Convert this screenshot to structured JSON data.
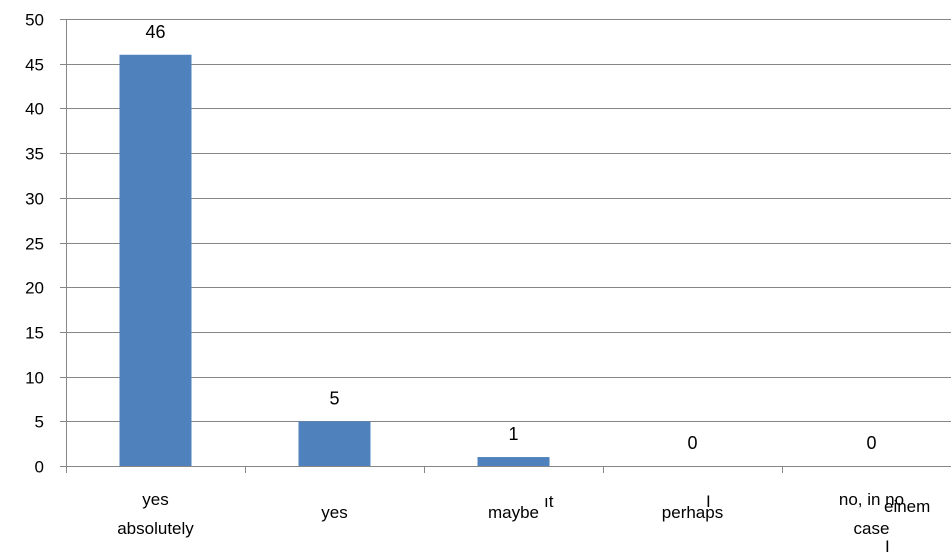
{
  "chart_data": {
    "type": "bar",
    "categories": [
      [
        "yes",
        "absolutely"
      ],
      [
        "yes"
      ],
      [
        "maybe"
      ],
      [
        "perhaps"
      ],
      [
        "no, in no",
        "case"
      ]
    ],
    "values": [
      46,
      5,
      1,
      0,
      0
    ],
    "data_labels": [
      "46",
      "5",
      "1",
      "0",
      "0"
    ],
    "ylim": [
      0,
      50
    ],
    "yticks": [
      0,
      5,
      10,
      15,
      20,
      25,
      30,
      35,
      40,
      45,
      50
    ],
    "title": "",
    "xlabel": "",
    "ylabel": "",
    "grid": true,
    "legend": "none",
    "bar_color": "#4F81BD",
    "stray_fragments": [
      "ıt",
      "I",
      "einem",
      "I"
    ]
  }
}
